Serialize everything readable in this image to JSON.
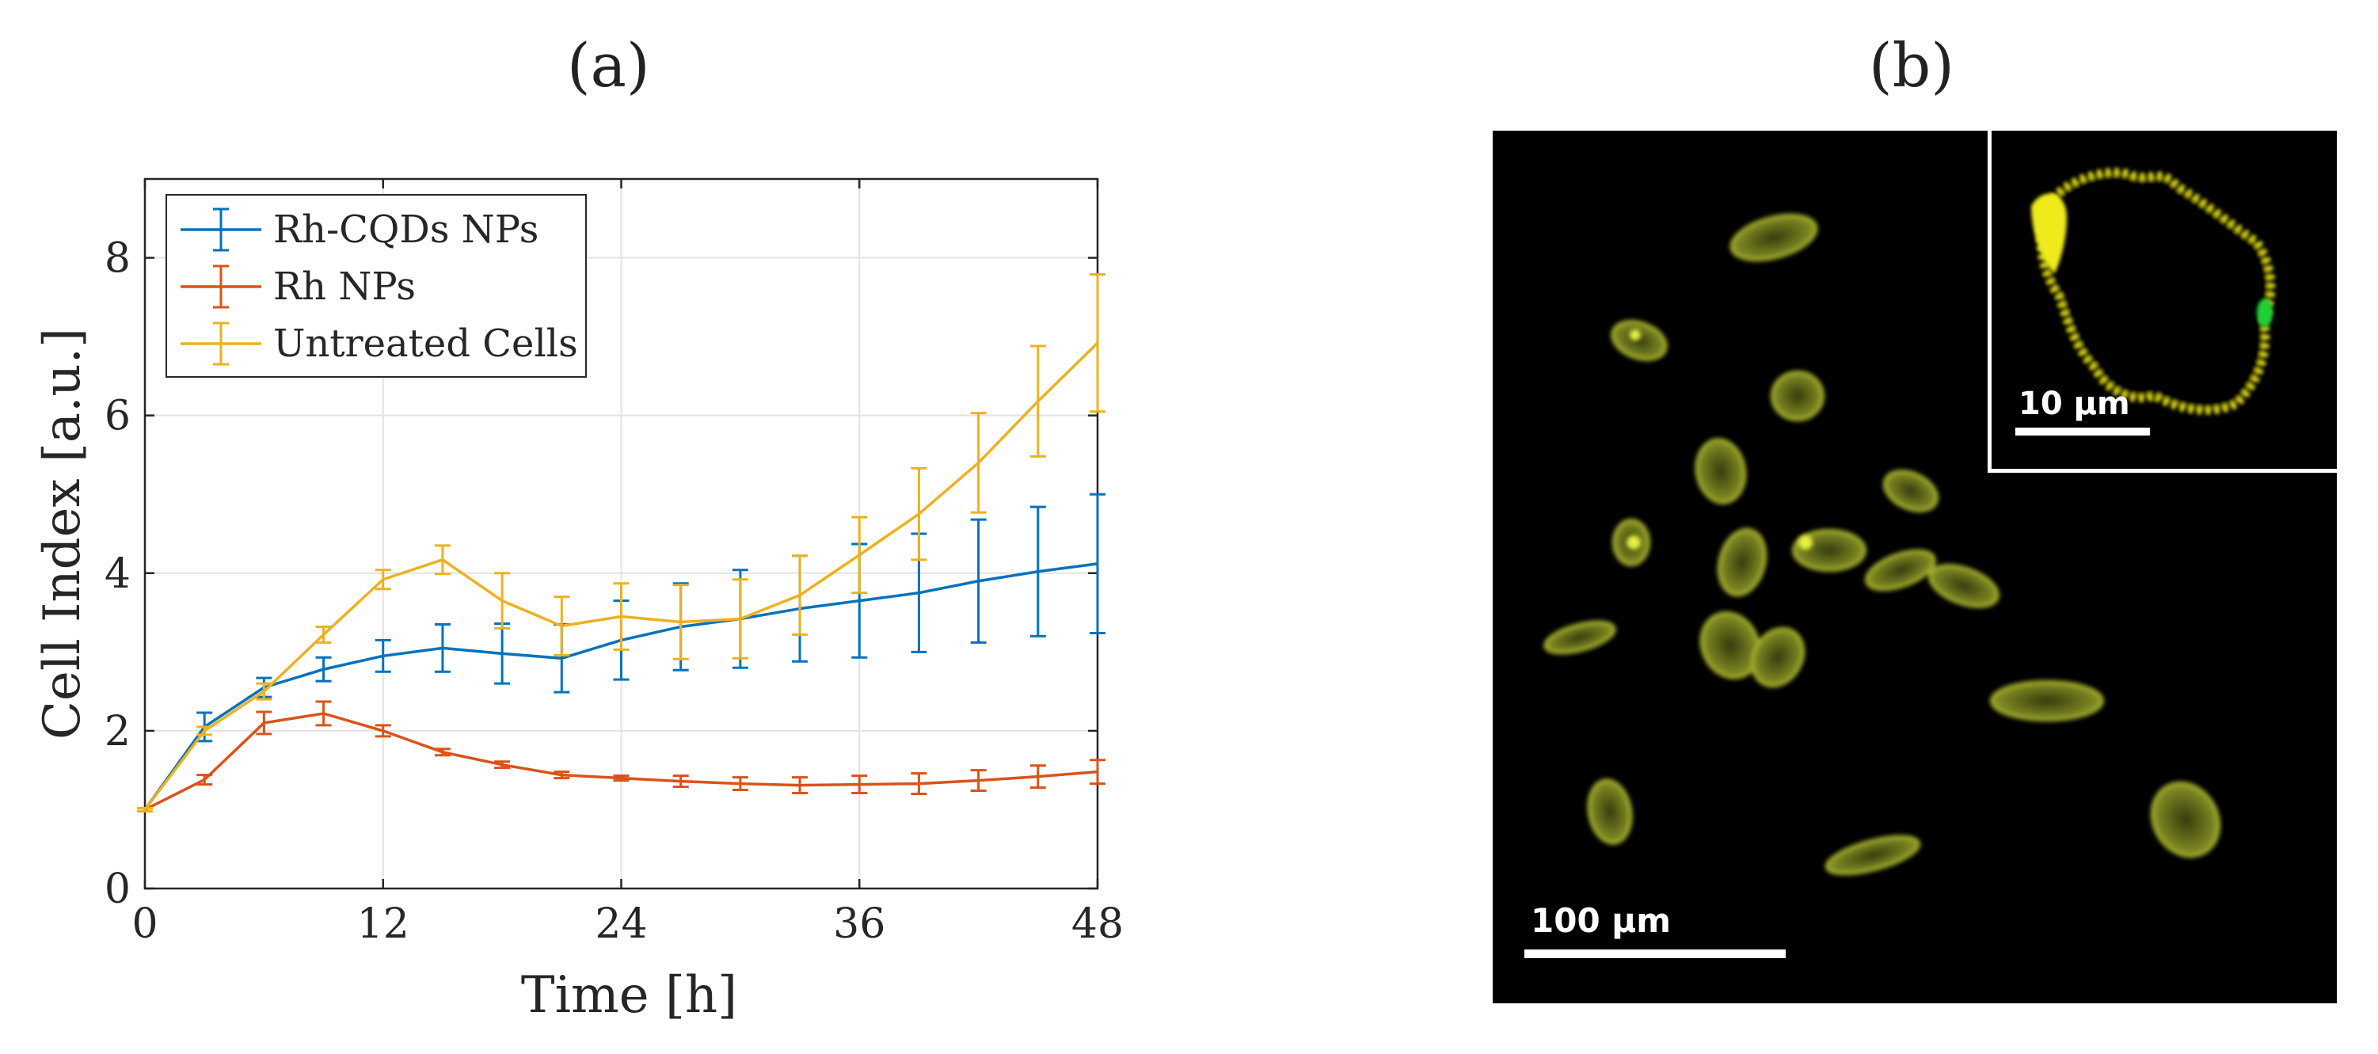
{
  "panel_a": {
    "label": "(a)",
    "chart_data": {
      "type": "line",
      "title": "",
      "xlabel": "Time [h]",
      "ylabel": "Cell Index [a.u.]",
      "xlim": [
        0,
        48
      ],
      "ylim": [
        0,
        9
      ],
      "xticks": [
        0,
        12,
        24,
        36,
        48
      ],
      "yticks": [
        0,
        2,
        4,
        6,
        8
      ],
      "xtick_labels": [
        "0",
        "12",
        "24",
        "36",
        "48"
      ],
      "ytick_labels": [
        "0",
        "2",
        "4",
        "6",
        "8"
      ],
      "grid": true,
      "legend_position": "top-left",
      "x": [
        0,
        3,
        6,
        9,
        12,
        15,
        18,
        21,
        24,
        27,
        30,
        33,
        36,
        39,
        42,
        45,
        48
      ],
      "series": [
        {
          "name": "Rh-CQDs NPs",
          "color": "#0072BD",
          "values": [
            1.0,
            2.05,
            2.55,
            2.78,
            2.95,
            3.05,
            2.98,
            2.92,
            3.15,
            3.32,
            3.42,
            3.55,
            3.65,
            3.75,
            3.9,
            4.02,
            4.12
          ],
          "errors": [
            0.02,
            0.18,
            0.12,
            0.15,
            0.2,
            0.3,
            0.38,
            0.43,
            0.5,
            0.55,
            0.62,
            0.67,
            0.72,
            0.75,
            0.78,
            0.82,
            0.88
          ]
        },
        {
          "name": "Rh NPs",
          "color": "#D95319",
          "values": [
            1.0,
            1.38,
            2.1,
            2.22,
            2.0,
            1.73,
            1.57,
            1.44,
            1.4,
            1.36,
            1.33,
            1.31,
            1.32,
            1.33,
            1.37,
            1.42,
            1.48
          ],
          "errors": [
            0.02,
            0.06,
            0.14,
            0.15,
            0.07,
            0.04,
            0.04,
            0.04,
            0.03,
            0.07,
            0.08,
            0.1,
            0.11,
            0.13,
            0.13,
            0.14,
            0.15
          ]
        },
        {
          "name": "Untreated Cells",
          "color": "#EDB120",
          "values": [
            1.0,
            2.0,
            2.5,
            3.22,
            3.92,
            4.17,
            3.65,
            3.33,
            3.45,
            3.38,
            3.42,
            3.72,
            4.23,
            4.75,
            5.4,
            6.18,
            6.92
          ],
          "errors": [
            0.02,
            0.05,
            0.1,
            0.1,
            0.12,
            0.18,
            0.35,
            0.37,
            0.42,
            0.47,
            0.5,
            0.5,
            0.48,
            0.58,
            0.63,
            0.7,
            0.87
          ]
        }
      ]
    }
  },
  "panel_b": {
    "label": "(b)",
    "main_scalebar_label": "100 µm",
    "inset_scalebar_label": "10 µm",
    "colors": {
      "background": "#000000",
      "cell_fluorescence": "#b9c431",
      "inset_membrane": "#e6e012",
      "inset_green_spot": "#1fd030",
      "scalebar": "#ffffff"
    }
  }
}
